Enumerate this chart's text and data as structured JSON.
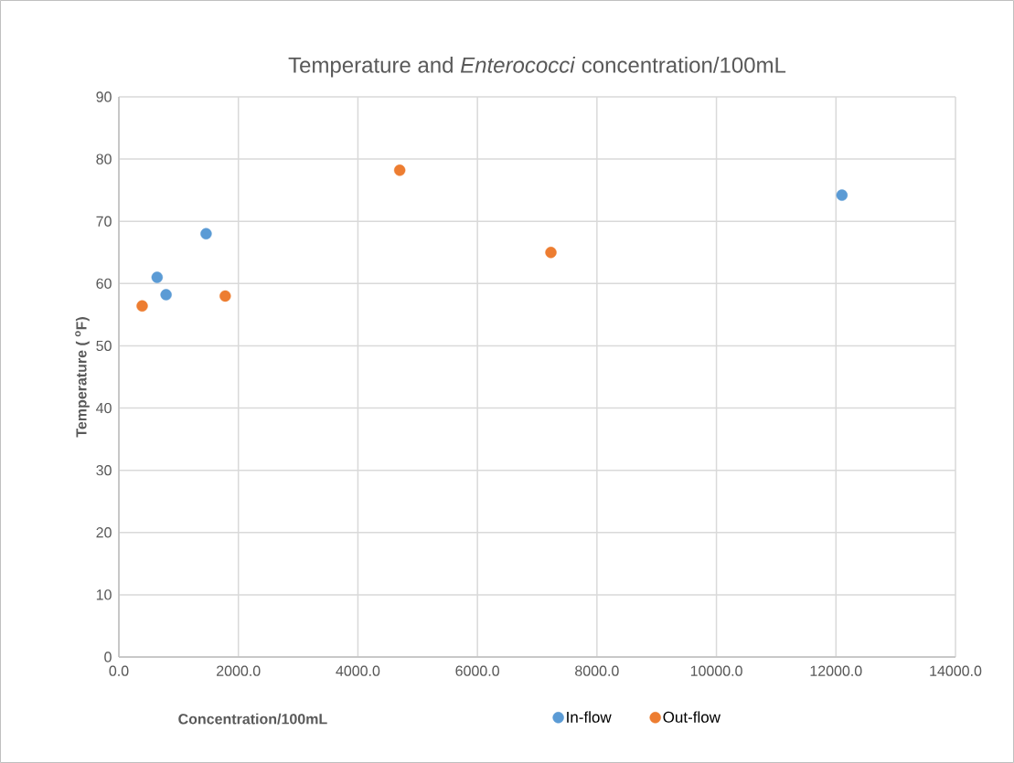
{
  "chart_data": {
    "type": "scatter",
    "title": "Temperature and *Enterococci* concentration/100mL",
    "xlabel": "Concentration/100mL",
    "ylabel": "Temperature ( $^{o}$F)",
    "series": [
      {
        "name": "In-flow",
        "color": "#5b9bd5",
        "x": [
          640,
          790,
          1460,
          12100
        ],
        "values": [
          61.0,
          58.2,
          68.0,
          74.2
        ]
      },
      {
        "name": "Out-flow",
        "color": "#ed7d31",
        "x": [
          390,
          1780,
          4700,
          7230
        ],
        "values": [
          56.4,
          58.0,
          78.2,
          65.0
        ]
      }
    ],
    "xlim": [
      0,
      14000
    ],
    "ylim": [
      0,
      90
    ],
    "xticks": [
      {
        "value": 0,
        "label": "0.0"
      },
      {
        "value": 2000,
        "label": "2000.0"
      },
      {
        "value": 4000,
        "label": "4000.0"
      },
      {
        "value": 6000,
        "label": "6000.0"
      },
      {
        "value": 8000,
        "label": "8000.0"
      },
      {
        "value": 10000,
        "label": "10000.0"
      },
      {
        "value": 12000,
        "label": "12000.0"
      },
      {
        "value": 14000,
        "label": "14000.0"
      }
    ],
    "yticks": [
      0,
      10,
      20,
      30,
      40,
      50,
      60,
      70,
      80,
      90
    ],
    "grid": true,
    "legend": "bottom",
    "marker": "circle"
  }
}
